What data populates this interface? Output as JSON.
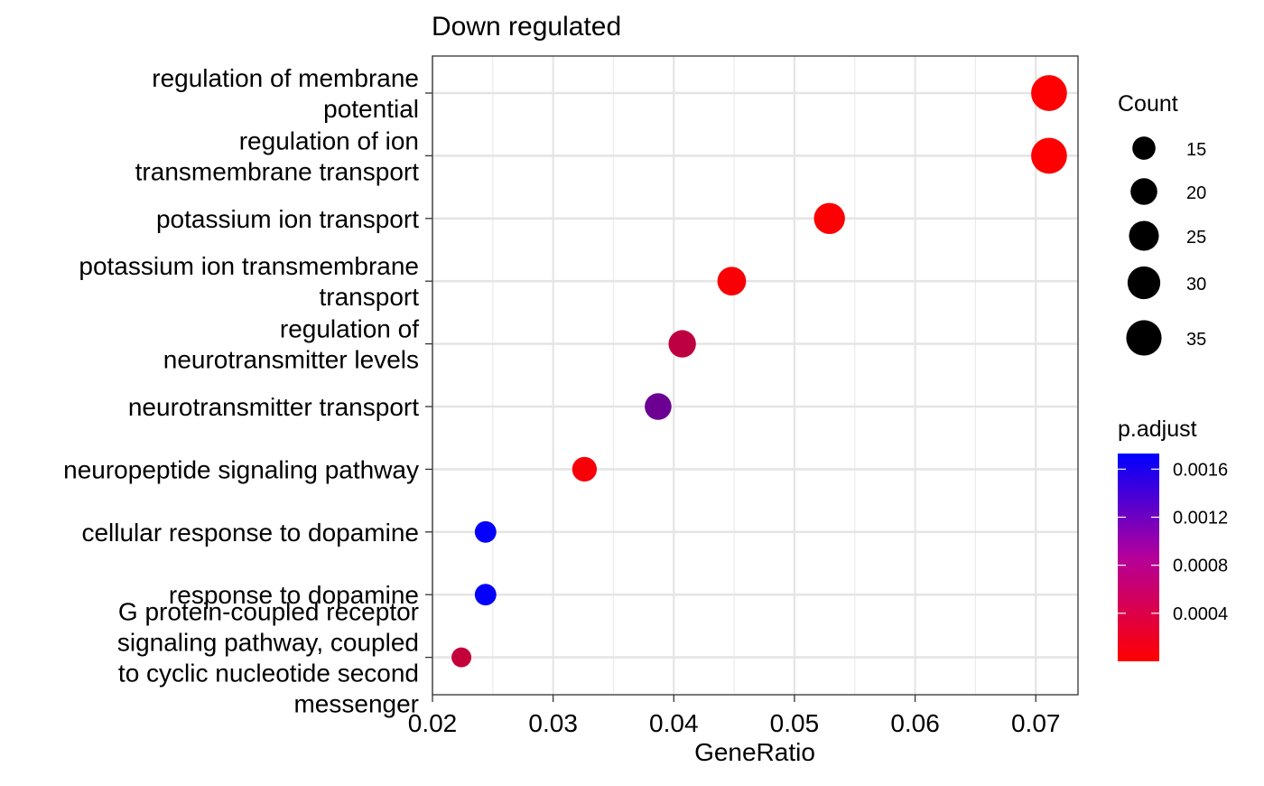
{
  "chart_data": {
    "type": "scatter",
    "title": "Down regulated",
    "xlabel": "GeneRatio",
    "ylabel": "",
    "xlim": [
      0.02,
      0.0735
    ],
    "x_ticks": [
      "0.02",
      "0.03",
      "0.04",
      "0.05",
      "0.06",
      "0.07"
    ],
    "x_tick_values": [
      0.02,
      0.03,
      0.04,
      0.05,
      0.06,
      0.07
    ],
    "grid": true,
    "legend_position": "right",
    "categories": [
      "regulation of membrane potential",
      "regulation of ion transmembrane transport",
      "potassium ion transport",
      "potassium ion transmembrane transport",
      "regulation of neurotransmitter levels",
      "neurotransmitter transport",
      "neuropeptide signaling pathway",
      "cellular response to dopamine",
      "response to dopamine",
      "G protein-coupled receptor signaling pathway, coupled to cyclic nucleotide second messenger"
    ],
    "category_label_lines": [
      [
        "regulation of membrane",
        "potential"
      ],
      [
        "regulation of ion",
        "transmembrane transport"
      ],
      [
        "potassium ion transport"
      ],
      [
        "potassium ion transmembrane",
        "transport"
      ],
      [
        "regulation of",
        "neurotransmitter levels"
      ],
      [
        "neurotransmitter transport"
      ],
      [
        "neuropeptide signaling pathway"
      ],
      [
        "cellular response to dopamine"
      ],
      [
        "response to dopamine"
      ],
      [
        "G protein-coupled receptor",
        "signaling pathway, coupled",
        "to cyclic nucleotide second",
        "messenger"
      ]
    ],
    "points": [
      {
        "term": "regulation of membrane potential",
        "gene_ratio": 0.0711,
        "count": 36,
        "p_adjust": 1e-05
      },
      {
        "term": "regulation of ion transmembrane transport",
        "gene_ratio": 0.0711,
        "count": 36,
        "p_adjust": 1e-05
      },
      {
        "term": "potassium ion transport",
        "gene_ratio": 0.0529,
        "count": 27,
        "p_adjust": 2e-05
      },
      {
        "term": "potassium ion transmembrane transport",
        "gene_ratio": 0.0448,
        "count": 23,
        "p_adjust": 4e-05
      },
      {
        "term": "regulation of neurotransmitter levels",
        "gene_ratio": 0.0407,
        "count": 21,
        "p_adjust": 0.00045
      },
      {
        "term": "neurotransmitter transport",
        "gene_ratio": 0.0387,
        "count": 20,
        "p_adjust": 0.001
      },
      {
        "term": "neuropeptide signaling pathway",
        "gene_ratio": 0.0326,
        "count": 17,
        "p_adjust": 5e-05
      },
      {
        "term": "cellular response to dopamine",
        "gene_ratio": 0.0244,
        "count": 13,
        "p_adjust": 0.0017
      },
      {
        "term": "response to dopamine",
        "gene_ratio": 0.0244,
        "count": 13,
        "p_adjust": 0.0017
      },
      {
        "term": "G protein-coupled receptor signaling pathway, coupled to cyclic nucleotide second messenger",
        "gene_ratio": 0.0224,
        "count": 11,
        "p_adjust": 0.0004
      }
    ],
    "size_legend": {
      "title": "Count",
      "values": [
        15,
        20,
        25,
        30,
        35
      ],
      "labels": [
        "15",
        "20",
        "25",
        "30",
        "35"
      ]
    },
    "color_legend": {
      "title": "p.adjust",
      "range": [
        0.0,
        0.00173
      ],
      "ticks": [
        0.0016,
        0.0012,
        0.0008,
        0.0004
      ],
      "tick_labels": [
        "0.0016",
        "0.0012",
        "0.0008",
        "0.0004"
      ],
      "low_color": "#ff0000",
      "high_color": "#0000ff"
    }
  }
}
